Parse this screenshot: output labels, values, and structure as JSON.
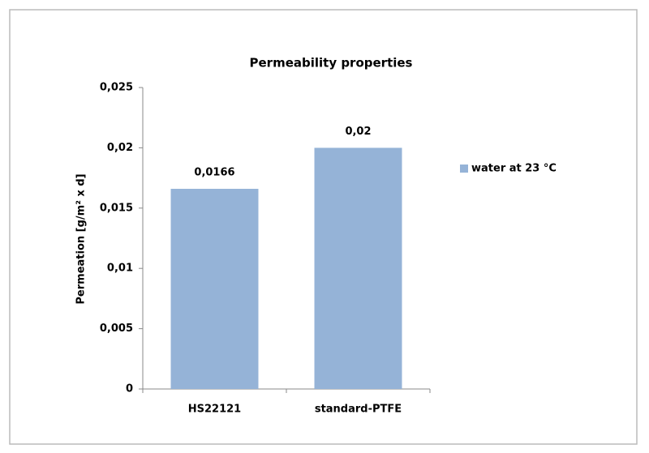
{
  "chart_data": {
    "type": "bar",
    "title": "Permeability properties",
    "ylabel": "Permeation [g/m² x d]",
    "categories": [
      "HS22121",
      "standard-PTFE"
    ],
    "series": [
      {
        "name": "water at 23 °C",
        "color": "#95b3d7",
        "values": [
          0.0166,
          0.02
        ],
        "value_labels": [
          "0,0166",
          "0,02"
        ]
      }
    ],
    "ylim": [
      0,
      0.025
    ],
    "yticks": [
      0,
      {
        "value": 0.005,
        "label": "0,005"
      },
      {
        "value": 0.01,
        "label": "0,01"
      },
      {
        "value": 0.015,
        "label": "0,015"
      },
      {
        "value": 0.02,
        "label": "0,02"
      },
      {
        "value": 0.025,
        "label": "0,025"
      }
    ],
    "grid": false,
    "legend": "right"
  }
}
